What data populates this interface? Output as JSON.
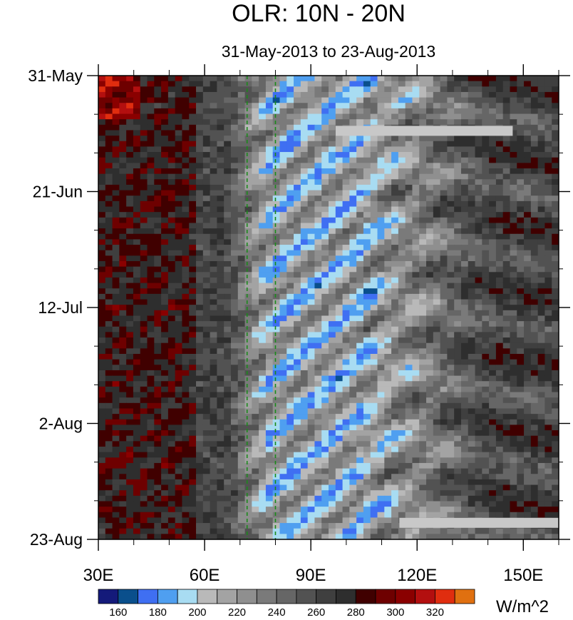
{
  "chart_data": {
    "type": "heatmap",
    "title": "OLR: 10N - 20N",
    "subtitle": "31-May-2013 to 23-Aug-2013",
    "x_axis": {
      "range": [
        30,
        160
      ],
      "ticks": [
        {
          "value": 30,
          "label": "30E"
        },
        {
          "value": 60,
          "label": "60E"
        },
        {
          "value": 90,
          "label": "90E"
        },
        {
          "value": 120,
          "label": "120E"
        },
        {
          "value": 150,
          "label": "150E"
        }
      ],
      "minor_step": 10
    },
    "y_axis": {
      "start_date": "2013-05-31",
      "end_date": "2013-08-23",
      "ticks": [
        {
          "date": "2013-05-31",
          "label": "31-May"
        },
        {
          "date": "2013-06-21",
          "label": "21-Jun"
        },
        {
          "date": "2013-07-12",
          "label": "12-Jul"
        },
        {
          "date": "2013-08-02",
          "label": "2-Aug"
        },
        {
          "date": "2013-08-23",
          "label": "23-Aug"
        }
      ],
      "minor_step_days": 7
    },
    "reference_lines": [
      {
        "longitude": 72,
        "color": "#1a8a1a",
        "style": "dashed"
      },
      {
        "longitude": 80,
        "color": "#1a8a1a",
        "style": "dashed"
      }
    ],
    "missing_segments": [
      {
        "lon_start": 97,
        "lon_end": 147,
        "date": "2013-06-10"
      },
      {
        "lon_start": 115,
        "lon_end": 160,
        "date": "2013-08-20"
      }
    ],
    "colorbar": {
      "unit": "W/m^2",
      "levels": [
        150,
        160,
        170,
        180,
        190,
        200,
        210,
        220,
        230,
        240,
        250,
        260,
        270,
        280,
        290,
        300,
        310,
        320,
        330
      ],
      "labels": [
        {
          "value": 160,
          "label": "160"
        },
        {
          "value": 180,
          "label": "180"
        },
        {
          "value": 200,
          "label": "200"
        },
        {
          "value": 220,
          "label": "220"
        },
        {
          "value": 240,
          "label": "240"
        },
        {
          "value": 260,
          "label": "260"
        },
        {
          "value": 280,
          "label": "280"
        },
        {
          "value": 300,
          "label": "300"
        },
        {
          "value": 320,
          "label": "320"
        }
      ],
      "colors": [
        "#141a7a",
        "#0a4f8c",
        "#3f6ff2",
        "#4f9ff0",
        "#a8dcf2",
        "#b9b9b9",
        "#a3a3a3",
        "#8f8f8f",
        "#7a7a7a",
        "#666666",
        "#525252",
        "#3f3f3f",
        "#2e2e2e",
        "#400000",
        "#6e0000",
        "#8a0000",
        "#b30f0f",
        "#e02d0f",
        "#e07010"
      ]
    }
  }
}
